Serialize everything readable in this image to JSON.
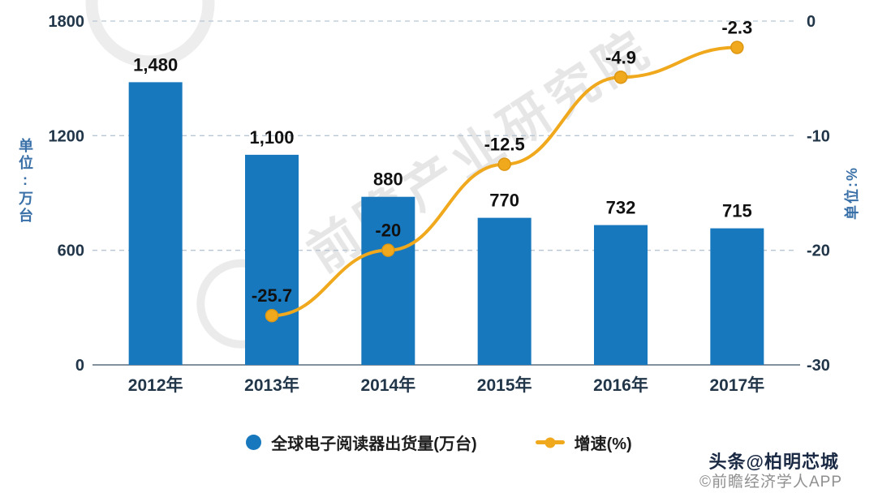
{
  "chart_data": {
    "type": "bar+line",
    "categories": [
      "2012年",
      "2013年",
      "2014年",
      "2015年",
      "2016年",
      "2017年"
    ],
    "series": [
      {
        "name": "全球电子阅读器出货量(万台)",
        "type": "bar",
        "axis": "left",
        "values": [
          1480,
          1100,
          880,
          770,
          732,
          715
        ],
        "labels": [
          "1,480",
          "1,100",
          "880",
          "770",
          "732",
          "715"
        ],
        "color": "#1778be"
      },
      {
        "name": "增速(%)",
        "type": "line",
        "axis": "right",
        "start_index": 1,
        "values": [
          -25.7,
          -20,
          -12.5,
          -4.9,
          -2.3
        ],
        "labels": [
          "-25.7",
          "-20",
          "-12.5",
          "-4.9",
          "-2.3"
        ],
        "color": "#f0a81c"
      }
    ],
    "left_axis": {
      "title": "单位:万台",
      "ticks": [
        0,
        600,
        1200,
        1800
      ],
      "min": 0,
      "max": 1800
    },
    "right_axis": {
      "title": "单位:%",
      "ticks": [
        0,
        -10,
        -20,
        -30
      ],
      "min": -30,
      "max": 0
    },
    "grid": true,
    "legend_position": "bottom"
  },
  "legend": {
    "items": [
      {
        "label": "全球电子阅读器出货量(万台)",
        "color": "#1778be",
        "marker": "circle"
      },
      {
        "label": "增速(%)",
        "color": "#f0a81c",
        "marker": "line-dot"
      }
    ]
  },
  "watermark": {
    "text": "前瞻产业研究院"
  },
  "footer": {
    "credit": "头条@柏明芯城",
    "source": "©前瞻经济学人APP"
  },
  "colors": {
    "bar": "#1778be",
    "line": "#f0a81c",
    "grid": "#b8c6d4",
    "axis": "#5a6b7d",
    "watermark": "#d2d2d2"
  }
}
